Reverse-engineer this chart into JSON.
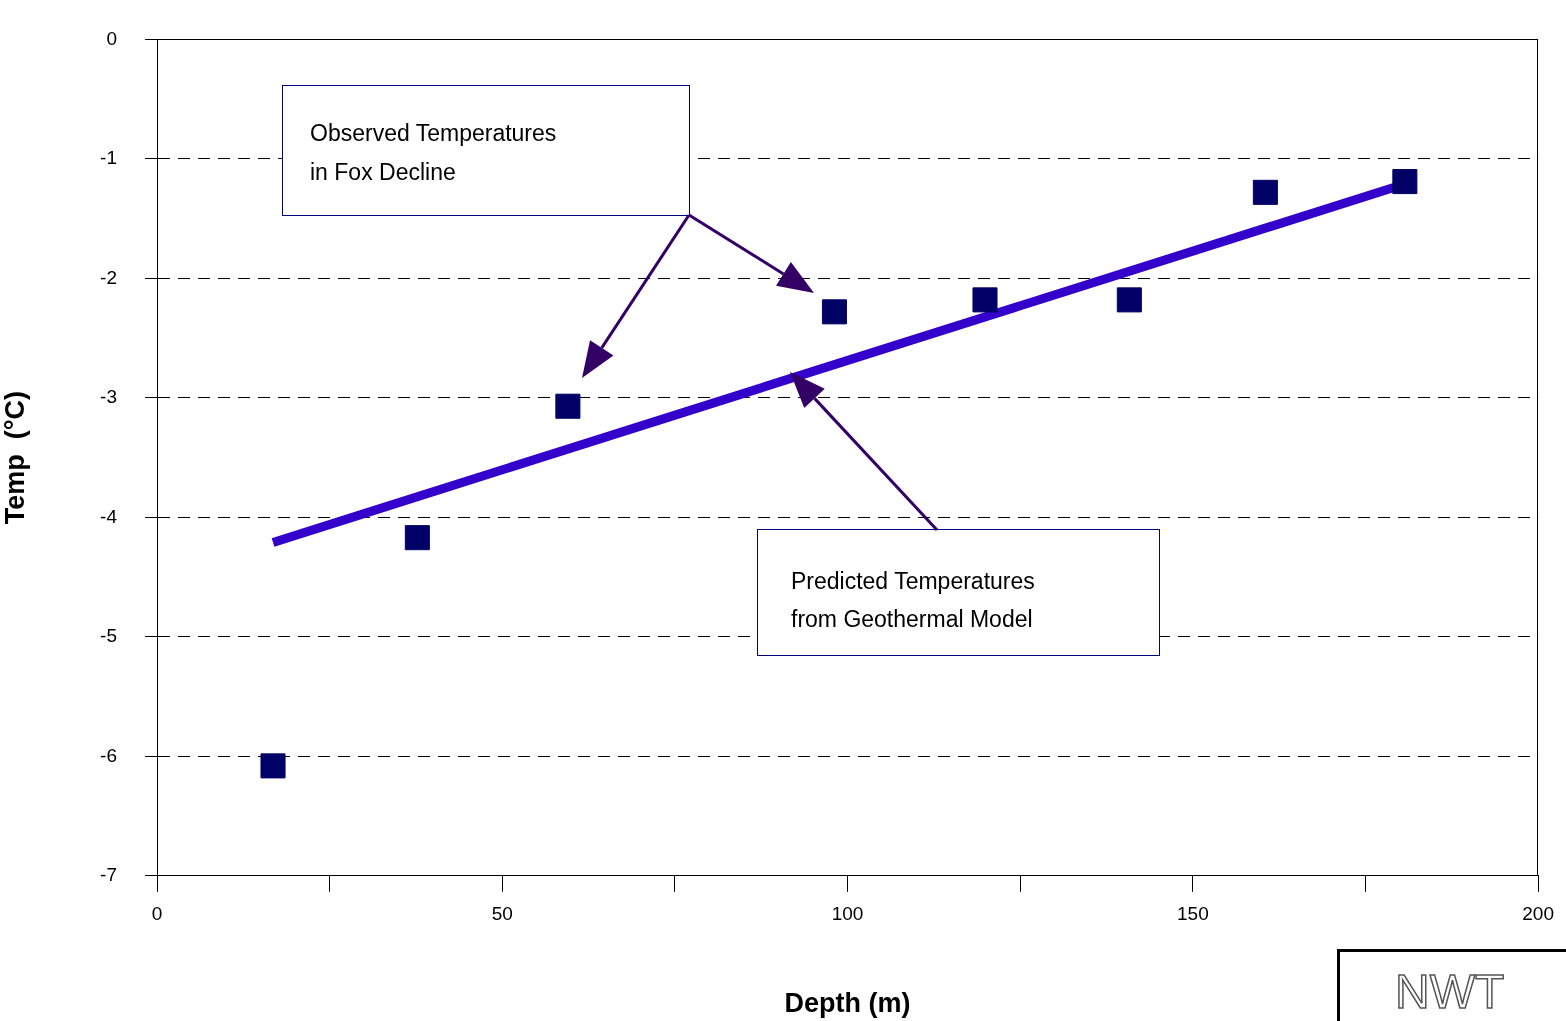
{
  "chart_data": {
    "type": "scatter",
    "xlabel": "Depth (m)",
    "ylabel": "Temp  (°C)",
    "xlim": [
      0,
      200
    ],
    "xticks": [
      0,
      {
        "value": 25,
        "label": null
      },
      50,
      {
        "value": 75,
        "label": null
      },
      100,
      {
        "value": 125,
        "label": null
      },
      150,
      {
        "value": 175,
        "label": null
      },
      200
    ],
    "ylim": [
      -7,
      0
    ],
    "yticks": [
      -7,
      -6,
      -5,
      -4,
      -3,
      -2,
      -1,
      0
    ],
    "grid": "y",
    "legend": false,
    "series": [
      {
        "type": "scatter",
        "marker": "square",
        "color": "#000066",
        "x": [
          16.8,
          37.7,
          59.5,
          98.1,
          119.9,
          140.8,
          160.5,
          180.7
        ],
        "values": [
          -6.08,
          -4.17,
          -3.07,
          -2.28,
          -2.18,
          -2.18,
          -1.28,
          -1.19
        ]
      },
      {
        "type": "line",
        "marker": "none",
        "color": "#3300cc",
        "x": [
          16.8,
          180.7
        ],
        "values": [
          -4.21,
          -1.21
        ]
      }
    ],
    "annotations": [
      "Observed Temperatures\nin Fox Decline",
      "Predicted Temperatures\nfrom Geothermal Model",
      "NWT"
    ]
  }
}
